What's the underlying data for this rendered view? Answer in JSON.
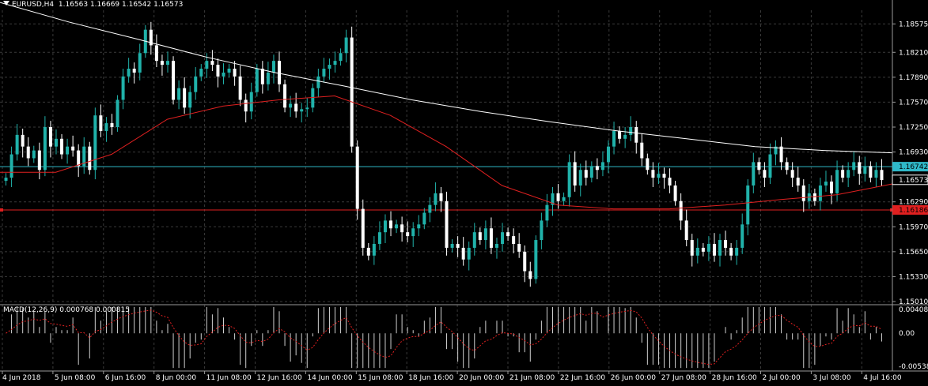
{
  "title": {
    "symbol": "EURUSD,H4",
    "ohlc": "1.16563 1.16669 1.16542 1.16573"
  },
  "macd": {
    "label": "MACD(12,26,9) 0.000768 0.000815",
    "scale": [
      "0.004083",
      "0.00",
      "-0.005384"
    ]
  },
  "price_scale": [
    "1.18575",
    "1.18210",
    "1.17890",
    "1.17570",
    "1.17250",
    "1.16930",
    "1.16290",
    "1.15970",
    "1.15650",
    "1.15330",
    "1.15010"
  ],
  "price_tags": {
    "bid": "1.16573",
    "cyan_line": "1.16742",
    "red_line": "1.16186"
  },
  "time_scale": [
    "4 Jun 2018",
    "5 Jun 08:00",
    "6 Jun 16:00",
    "8 Jun 00:00",
    "11 Jun 08:00",
    "12 Jun 16:00",
    "14 Jun 00:00",
    "15 Jun 08:00",
    "18 Jun 16:00",
    "20 Jun 00:00",
    "21 Jun 08:00",
    "22 Jun 16:00",
    "26 Jun 00:00",
    "27 Jun 08:00",
    "28 Jun 16:00",
    "2 Jul 00:00",
    "3 Jul 08:00",
    "4 Jul 16:00"
  ],
  "colors": {
    "background": "#000000",
    "bull": "#20b2aa",
    "bear": "#ffffff",
    "grid": "#3a3a3a",
    "ma_fast": "#e02020",
    "ma_slow": "#ffffff",
    "cyan_line": "#2fb8c8",
    "red_line": "#e02020"
  },
  "chart_data": {
    "type": "candlestick",
    "closes": [
      1.166,
      1.169,
      1.1715,
      1.17,
      1.1685,
      1.1695,
      1.167,
      1.1725,
      1.17,
      1.171,
      1.169,
      1.17,
      1.1695,
      1.1675,
      1.17,
      1.167,
      1.174,
      1.172,
      1.173,
      1.1725,
      1.176,
      1.179,
      1.18,
      1.1795,
      1.182,
      1.185,
      1.183,
      1.181,
      1.1805,
      1.181,
      1.176,
      1.1775,
      1.175,
      1.177,
      1.179,
      1.18,
      1.181,
      1.1805,
      1.179,
      1.1795,
      1.18,
      1.179,
      1.176,
      1.1745,
      1.177,
      1.18,
      1.178,
      1.1795,
      1.181,
      1.178,
      1.175,
      1.1755,
      1.1745,
      1.1748,
      1.175,
      1.1775,
      1.179,
      1.18,
      1.1805,
      1.181,
      1.182,
      1.184,
      1.17,
      1.162,
      1.157,
      1.156,
      1.1575,
      1.159,
      1.1605,
      1.1595,
      1.16,
      1.159,
      1.1585,
      1.1595,
      1.16,
      1.1615,
      1.1625,
      1.164,
      1.163,
      1.157,
      1.1575,
      1.157,
      1.1555,
      1.157,
      1.159,
      1.158,
      1.1595,
      1.157,
      1.1575,
      1.159,
      1.1585,
      1.1575,
      1.1565,
      1.154,
      1.153,
      1.158,
      1.1605,
      1.1625,
      1.164,
      1.163,
      1.1635,
      1.168,
      1.165,
      1.167,
      1.166,
      1.1675,
      1.167,
      1.168,
      1.17,
      1.172,
      1.171,
      1.1715,
      1.1725,
      1.1705,
      1.1685,
      1.167,
      1.166,
      1.1665,
      1.166,
      1.165,
      1.163,
      1.1605,
      1.158,
      1.156,
      1.157,
      1.1565,
      1.1575,
      1.156,
      1.158,
      1.157,
      1.156,
      1.157,
      1.16,
      1.165,
      1.168,
      1.167,
      1.166,
      1.169,
      1.17,
      1.168,
      1.167,
      1.166,
      1.165,
      1.163,
      1.164,
      1.163,
      1.165,
      1.1655,
      1.164,
      1.167,
      1.166,
      1.167,
      1.168,
      1.1665,
      1.1675,
      1.166,
      1.167,
      1.1657
    ],
    "ma_slow": [
      1.1885,
      1.186,
      1.1838,
      1.1815,
      1.1795,
      1.1778,
      1.176,
      1.1745,
      1.1732,
      1.172,
      1.171,
      1.17,
      1.1695,
      1.1692
    ],
    "ma_fast": [
      1.1667,
      1.1667,
      1.169,
      1.1735,
      1.1752,
      1.176,
      1.1765,
      1.174,
      1.17,
      1.165,
      1.1625,
      1.162,
      1.162,
      1.1625,
      1.1632,
      1.1638,
      1.1652
    ],
    "y_range": [
      1.1501,
      1.1875
    ],
    "macd_range": [
      -0.005384,
      0.004083
    ]
  }
}
